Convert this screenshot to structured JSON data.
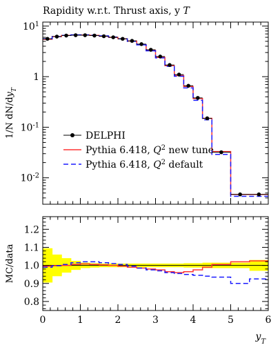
{
  "chart_data": [
    {
      "type": "line",
      "title": "Rapidity w.r.t. Thrust axis, y_T",
      "ylabel": "1/N dN/dy_T",
      "yscale": "log",
      "ylim": [
        0.003,
        12
      ],
      "xlim": [
        0,
        6
      ],
      "y_tick_labels": [
        "10^-2",
        "10^-1",
        "1",
        "10^1"
      ],
      "legend_position": "middle-left",
      "bin_edges": [
        0,
        0.25,
        0.5,
        0.75,
        1.0,
        1.25,
        1.5,
        1.75,
        2.0,
        2.25,
        2.5,
        2.75,
        3.0,
        3.25,
        3.5,
        3.75,
        4.0,
        4.25,
        4.5,
        5.0,
        5.5,
        6.0
      ],
      "series": [
        {
          "name": "DELPHI",
          "style": "points",
          "color": "#000000",
          "x": [
            0.125,
            0.375,
            0.625,
            0.875,
            1.125,
            1.375,
            1.625,
            1.875,
            2.125,
            2.375,
            2.625,
            2.875,
            3.125,
            3.375,
            3.625,
            3.875,
            4.125,
            4.375,
            4.75,
            5.25,
            5.75
          ],
          "values": [
            5.6,
            6.2,
            6.5,
            6.6,
            6.6,
            6.5,
            6.3,
            6.0,
            5.6,
            5.1,
            4.4,
            3.4,
            2.5,
            1.7,
            1.1,
            0.66,
            0.38,
            0.15,
            0.032,
            0.0047,
            0.0047
          ]
        },
        {
          "name": "Pythia 6.418, Q^2 new tune",
          "style": "solid-histogram",
          "color": "#ff3333",
          "values": [
            5.5,
            6.2,
            6.55,
            6.65,
            6.65,
            6.55,
            6.3,
            6.0,
            5.6,
            5.05,
            4.3,
            3.3,
            2.4,
            1.65,
            1.05,
            0.64,
            0.37,
            0.15,
            0.033,
            0.0047,
            0.0047
          ]
        },
        {
          "name": "Pythia 6.418, Q^2 default",
          "style": "dashed-histogram",
          "color": "#1a1aff",
          "values": [
            5.6,
            6.2,
            6.55,
            6.7,
            6.7,
            6.6,
            6.4,
            6.05,
            5.6,
            5.0,
            4.25,
            3.25,
            2.35,
            1.6,
            1.02,
            0.6,
            0.34,
            0.14,
            0.029,
            0.0043,
            0.0043
          ]
        }
      ]
    },
    {
      "type": "line",
      "ylabel": "MC/data",
      "xlabel": "y_T",
      "ylim": [
        0.75,
        1.27
      ],
      "xlim": [
        0,
        6
      ],
      "x_tick_labels": [
        "0",
        "1",
        "2",
        "3",
        "4",
        "5",
        "6"
      ],
      "y_tick_labels": [
        "0.8",
        "0.9",
        "1.0",
        "1.1",
        "1.2"
      ],
      "bin_edges": [
        0,
        0.25,
        0.5,
        0.75,
        1.0,
        1.25,
        1.5,
        1.75,
        2.0,
        2.25,
        2.5,
        2.75,
        3.0,
        3.25,
        3.5,
        3.75,
        4.0,
        4.25,
        4.5,
        5.0,
        5.5,
        6.0
      ],
      "data_uncertainty_band": {
        "color": "#ffff00",
        "half_widths": [
          0.095,
          0.06,
          0.04,
          0.025,
          0.015,
          0.012,
          0.01,
          0.01,
          0.01,
          0.01,
          0.01,
          0.01,
          0.01,
          0.01,
          0.01,
          0.012,
          0.012,
          0.015,
          0.015,
          0.015,
          0.03
        ]
      },
      "series": [
        {
          "name": "Pythia 6.418, Q^2 new tune",
          "style": "solid-histogram",
          "color": "#ff3333",
          "values": [
            0.995,
            0.998,
            1.0,
            1.005,
            1.008,
            1.005,
            1.003,
            1.0,
            0.995,
            0.99,
            0.985,
            0.98,
            0.975,
            0.965,
            0.96,
            0.965,
            0.975,
            0.99,
            1.005,
            1.02,
            1.025
          ]
        },
        {
          "name": "Pythia 6.418, Q^2 default",
          "style": "dashed-histogram",
          "color": "#1a1aff",
          "values": [
            0.99,
            0.998,
            1.005,
            1.015,
            1.02,
            1.02,
            1.015,
            1.01,
            1.005,
            0.995,
            0.985,
            0.975,
            0.97,
            0.96,
            0.955,
            0.95,
            0.945,
            0.94,
            0.935,
            0.9,
            0.925
          ]
        }
      ]
    }
  ]
}
